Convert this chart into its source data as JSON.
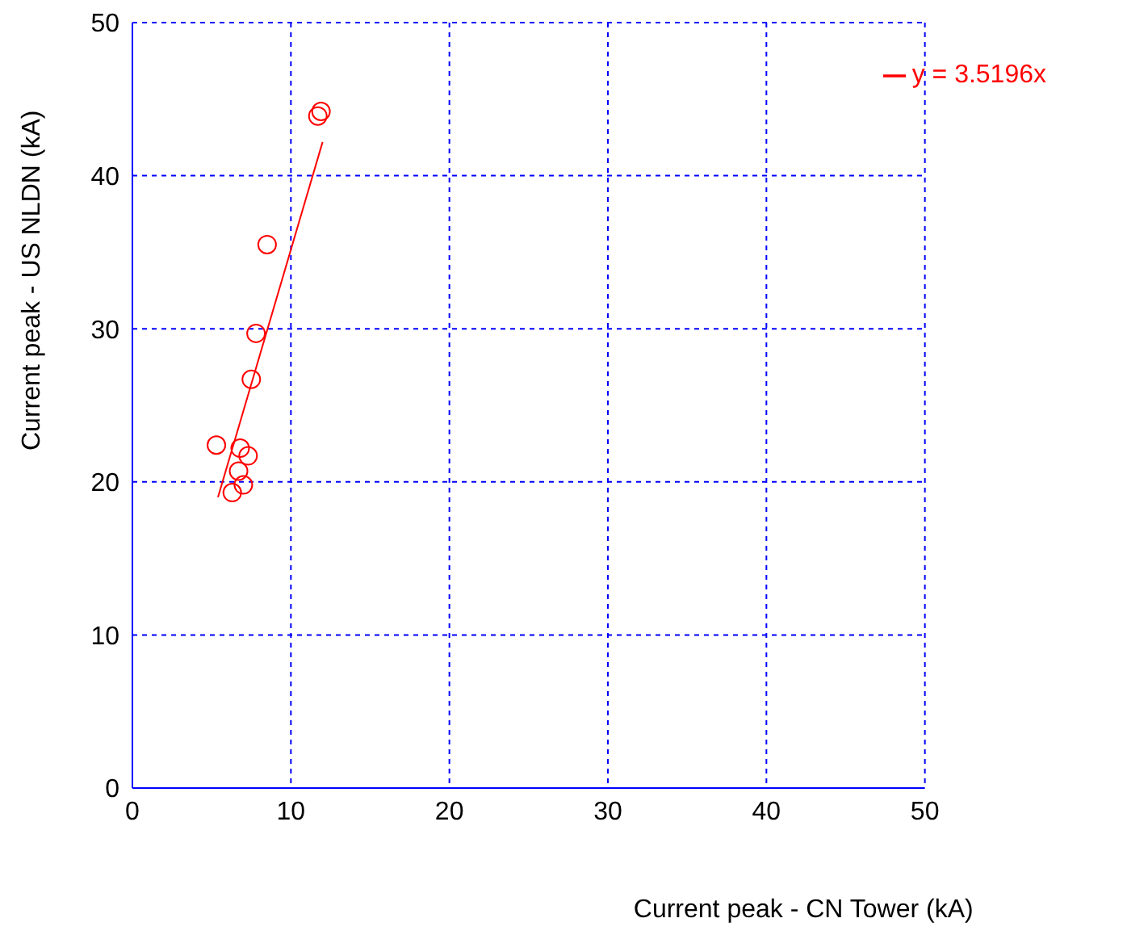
{
  "chart_data": {
    "type": "scatter",
    "xlabel": "Current peak - CN Tower (kA)",
    "ylabel": "Current peak - US NLDN  (kA)",
    "xlim": [
      0,
      50
    ],
    "xticks": [
      0,
      10,
      20,
      30,
      40,
      50
    ],
    "ylim": [
      0,
      50
    ],
    "yticks": [
      0,
      10,
      20,
      30,
      40,
      50
    ],
    "grid": true,
    "legend": "top right",
    "marker": "circle",
    "series": [
      {
        "color": "#ff0000",
        "x": [
          5.3,
          6.8,
          7.3,
          6.7,
          7.0,
          6.3,
          7.5,
          7.8,
          8.5,
          11.7,
          11.9
        ],
        "values": [
          22.4,
          22.2,
          21.7,
          20.7,
          19.8,
          19.3,
          26.7,
          29.7,
          35.5,
          43.9,
          44.2
        ]
      },
      {
        "type": "line",
        "name": "y = 3.5196x",
        "color": "#ff0000",
        "marker": "none",
        "x": [
          5.4,
          12.0
        ],
        "values": [
          19.0,
          42.2
        ]
      }
    ]
  }
}
